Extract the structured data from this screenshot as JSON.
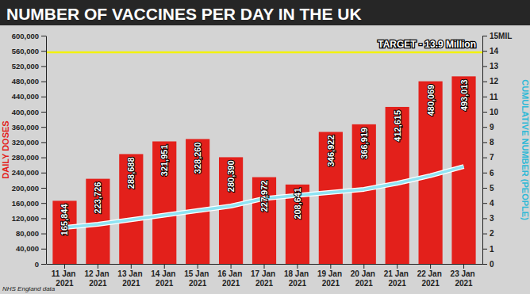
{
  "chart_data": {
    "type": "bar",
    "title": "NUMBER OF VACCINES PER DAY IN THE UK",
    "y_label": "DAILY DOSES",
    "y2_label": "CUMULATIVE NUMBER (PEOPLE)",
    "categories": [
      "11 Jan 2021",
      "12 Jan 2021",
      "13 Jan 2021",
      "14 Jan 2021",
      "15 Jan 2021",
      "16 Jan 2021",
      "17 Jan 2021",
      "18 Jan 2021",
      "19 Jan 2021",
      "20 Jan 2021",
      "21 Jan 2021",
      "22 Jan 2021",
      "23 Jan 2021"
    ],
    "series": [
      {
        "type": "bar",
        "color": "#e3201b",
        "values": [
          165844,
          223726,
          288688,
          321951,
          328260,
          280390,
          227972,
          208641,
          346922,
          366919,
          412615,
          480069,
          493013
        ],
        "value_labels": [
          "165,844",
          "223,726",
          "288,688",
          "321,951",
          "328,260",
          "280,390",
          "227,972",
          "208,641",
          "346,922",
          "366,919",
          "412,615",
          "480,069",
          "493,013"
        ]
      },
      {
        "type": "line",
        "axis": "y2",
        "color": "#8fe3f2",
        "values": [
          2.4,
          2.6,
          2.9,
          3.2,
          3.5,
          3.8,
          4.3,
          4.5,
          4.7,
          4.9,
          5.3,
          5.8,
          6.4
        ]
      }
    ],
    "data_labels": true,
    "grid": false,
    "ylim": [
      0,
      600000
    ],
    "yticks": [
      0,
      {
        "value": 40000,
        "label": "40,000"
      },
      {
        "value": 80000,
        "label": "80,000"
      },
      {
        "value": 120000,
        "label": "120,000"
      },
      {
        "value": 160000,
        "label": "160,000"
      },
      {
        "value": 200000,
        "label": "200,000"
      },
      {
        "value": 240000,
        "label": "240,000"
      },
      {
        "value": 280000,
        "label": "280,000"
      },
      {
        "value": 320000,
        "label": "320,000"
      },
      {
        "value": 360000,
        "label": "360,000"
      },
      {
        "value": 400000,
        "label": "400,000"
      },
      {
        "value": 440000,
        "label": "440,000"
      },
      {
        "value": 480000,
        "label": "480,000"
      },
      {
        "value": 520000,
        "label": "520,000"
      },
      {
        "value": 560000,
        "label": "560,000"
      },
      {
        "value": 600000,
        "label": "600,000"
      }
    ],
    "y2lim": [
      0,
      15
    ],
    "y2ticks": [
      0,
      1,
      2,
      3,
      4,
      5,
      6,
      7,
      8,
      9,
      10,
      11,
      12,
      13,
      14,
      {
        "value": 15,
        "label": "15MIL"
      }
    ],
    "annotations": [
      {
        "text": "TARGET - 13.9 Million",
        "y": 13.9,
        "axis": "y2",
        "color": "#f2f20a"
      },
      {
        "text": "NHS England data"
      }
    ]
  }
}
